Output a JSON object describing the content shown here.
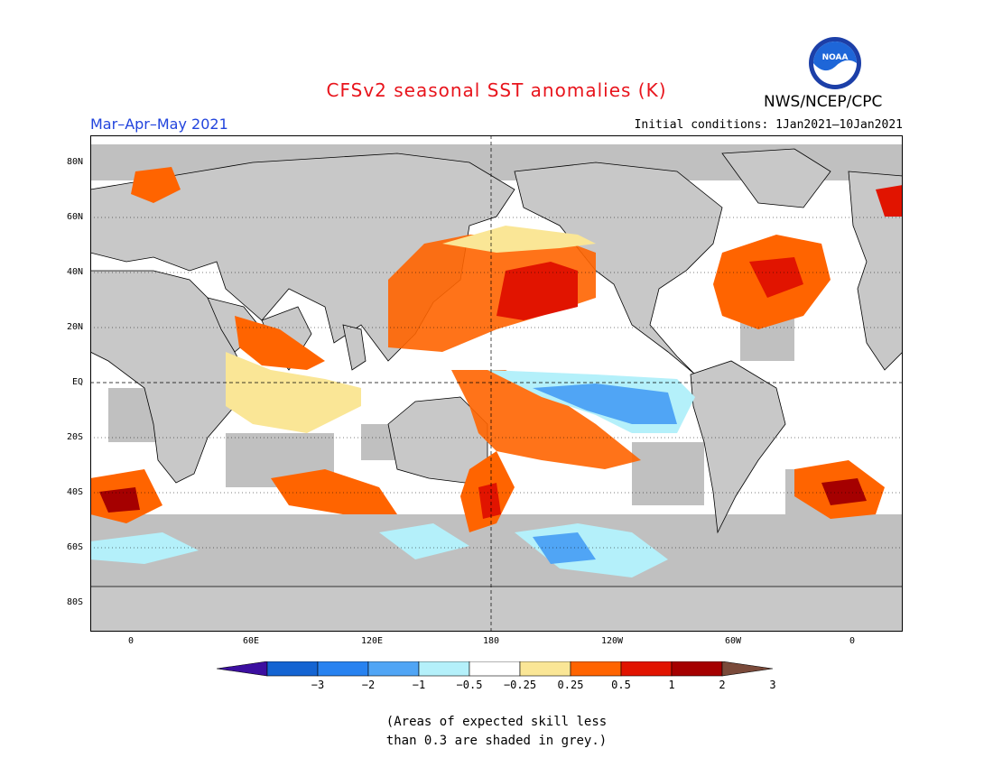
{
  "title": "CFSv2 seasonal SST anomalies (K)",
  "agency": "NWS/NCEP/CPC",
  "logo_text": "NOAA",
  "season": "Mar–Apr–May 2021",
  "initial_conditions": "Initial conditions: 1Jan2021–10Jan2021",
  "lat_labels": [
    "80N",
    "60N",
    "40N",
    "20N",
    "EQ",
    "20S",
    "40S",
    "60S",
    "80S"
  ],
  "lon_labels": [
    "0",
    "60E",
    "120E",
    "180",
    "120W",
    "60W",
    "0"
  ],
  "colorbar": {
    "labels": [
      "−3",
      "−2",
      "−1",
      "−0.5",
      "−0.25",
      "0.25",
      "0.5",
      "1",
      "2",
      "3"
    ],
    "colors": [
      "#3c0fa0",
      "#1464d2",
      "#2882f0",
      "#50a5f5",
      "#b4f0fa",
      "#ffffff",
      "#fae696",
      "#ff6400",
      "#e11400",
      "#a50000",
      "#7a4a3a"
    ]
  },
  "note": [
    "(Areas of expected skill less",
    "than 0.3 are shaded in grey.)"
  ],
  "colors": {
    "land": "#c8c8c8",
    "grey_skill": "#c0c0c0",
    "ocean_neutral": "#ffffff"
  }
}
